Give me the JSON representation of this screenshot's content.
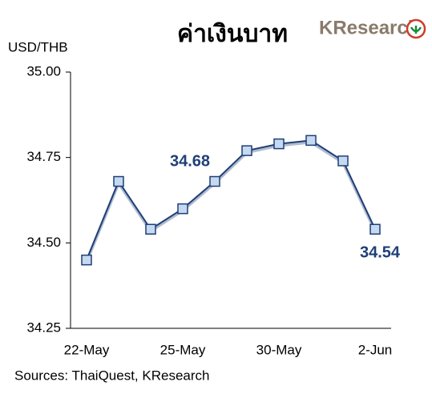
{
  "chart_data": {
    "type": "line",
    "title": "ค่าเงินบาท",
    "logo": "KResearch",
    "y_label": "USD/THB",
    "source": "Sources: ThaiQuest, KResearch",
    "categories": [
      "22-May",
      null,
      null,
      "25-May",
      null,
      null,
      "30-May",
      null,
      null,
      "2-Jun"
    ],
    "values": [
      34.45,
      34.68,
      34.54,
      34.6,
      34.68,
      34.77,
      34.79,
      34.8,
      34.74,
      34.54
    ],
    "color": "#1f3f77",
    "marker_color": "#c5d9f1",
    "annotations": [
      "34.68",
      "34.54"
    ],
    "ylim": [
      34.25,
      35.0
    ],
    "yticks": [
      {
        "value": 34.25,
        "label": "34.25"
      },
      {
        "value": 34.5,
        "label": "34.50"
      },
      {
        "value": 34.75,
        "label": "34.75"
      },
      {
        "value": 35.0,
        "label": "35.00"
      }
    ],
    "grid": false
  }
}
